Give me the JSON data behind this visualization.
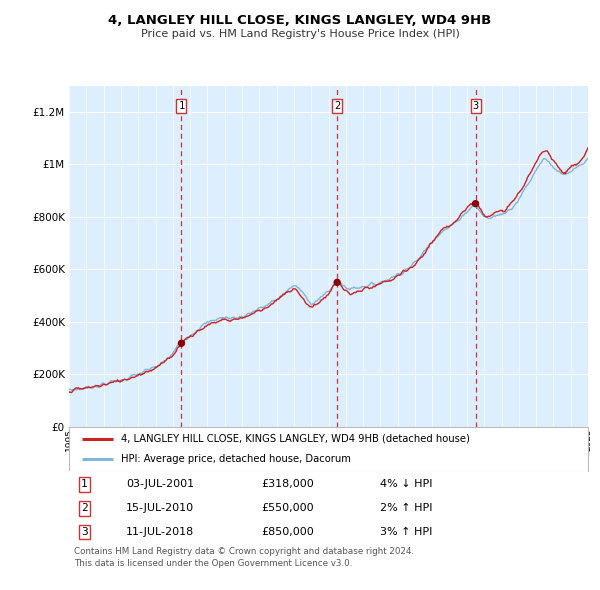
{
  "title": "4, LANGLEY HILL CLOSE, KINGS LANGLEY, WD4 9HB",
  "subtitle": "Price paid vs. HM Land Registry's House Price Index (HPI)",
  "background_color": "#ffffff",
  "plot_bg_color": "#ddeeff",
  "grid_color": "#ffffff",
  "hpi_color": "#7aafdd",
  "price_color": "#cc2222",
  "marker_color": "#8b0000",
  "vline_color": "#cc3333",
  "ylim": [
    0,
    1300000
  ],
  "yticks": [
    0,
    200000,
    400000,
    600000,
    800000,
    1000000,
    1200000
  ],
  "ytick_labels": [
    "£0",
    "£200K",
    "£400K",
    "£600K",
    "£800K",
    "£1M",
    "£1.2M"
  ],
  "x_start_year": 1995,
  "x_end_year": 2025,
  "sales": [
    {
      "year": 2001.5,
      "price": 318000,
      "label": "1"
    },
    {
      "year": 2010.5,
      "price": 550000,
      "label": "2"
    },
    {
      "year": 2018.5,
      "price": 850000,
      "label": "3"
    }
  ],
  "legend_line1": "4, LANGLEY HILL CLOSE, KINGS LANGLEY, WD4 9HB (detached house)",
  "legend_line2": "HPI: Average price, detached house, Dacorum",
  "table_rows": [
    {
      "num": "1",
      "date": "03-JUL-2001",
      "price": "£318,000",
      "pct": "4% ↓ HPI"
    },
    {
      "num": "2",
      "date": "15-JUL-2010",
      "price": "£550,000",
      "pct": "2% ↑ HPI"
    },
    {
      "num": "3",
      "date": "11-JUL-2018",
      "price": "£850,000",
      "pct": "3% ↑ HPI"
    }
  ],
  "footer": "Contains HM Land Registry data © Crown copyright and database right 2024.\nThis data is licensed under the Open Government Licence v3.0."
}
